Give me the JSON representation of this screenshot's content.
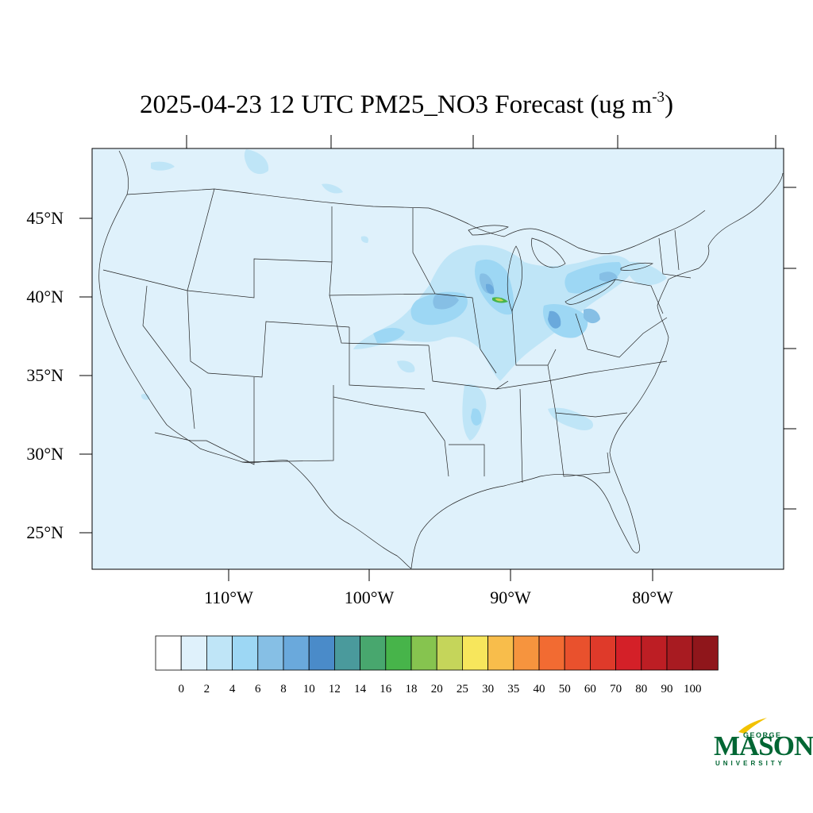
{
  "map": {
    "title_text": "2025-04-23 12 UTC PM25_NO3 Forecast (ug m",
    "title_sup": "-3",
    "title_close": ")",
    "lat_labels": [
      "45°N",
      "40°N",
      "35°N",
      "30°N",
      "25°N"
    ],
    "lon_labels": [
      "110°W",
      "100°W",
      "90°W",
      "80°W"
    ],
    "background_color": "#dff1fb"
  },
  "colorbar": {
    "labels": [
      "0",
      "2",
      "4",
      "6",
      "8",
      "10",
      "12",
      "14",
      "16",
      "18",
      "20",
      "25",
      "30",
      "35",
      "40",
      "50",
      "60",
      "70",
      "80",
      "90",
      "100"
    ],
    "colors": [
      "#ffffff",
      "#dff1fb",
      "#bfe5f7",
      "#9dd7f4",
      "#86bfe5",
      "#6aa9dc",
      "#4a8bc9",
      "#4a9a9c",
      "#48a76e",
      "#47b44a",
      "#86c44f",
      "#c5d55a",
      "#f7e65c",
      "#f8bd4b",
      "#f6943e",
      "#f26b32",
      "#e9512d",
      "#df3a2a",
      "#d42028",
      "#bd1e24",
      "#a81b21",
      "#8f161b"
    ]
  },
  "logo": {
    "top": "GEORGE",
    "main": "MASON",
    "bottom": "UNIVERSITY"
  }
}
